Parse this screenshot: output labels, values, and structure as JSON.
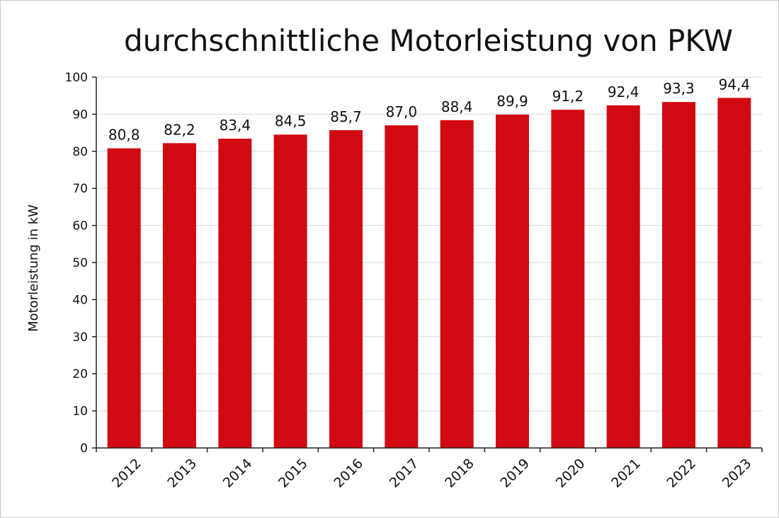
{
  "chart_data": {
    "type": "bar",
    "title": "durchschnittliche Motorleistung von PKW",
    "xlabel": "",
    "ylabel": "Motorleistung in kW",
    "categories": [
      "2012",
      "2013",
      "2014",
      "2015",
      "2016",
      "2017",
      "2018",
      "2019",
      "2020",
      "2021",
      "2022",
      "2023"
    ],
    "values": [
      80.8,
      82.2,
      83.4,
      84.5,
      85.7,
      87.0,
      88.4,
      89.9,
      91.2,
      92.4,
      93.3,
      94.4
    ],
    "value_labels": [
      "80,8",
      "82,2",
      "83,4",
      "84,5",
      "85,7",
      "87,0",
      "88,4",
      "89,9",
      "91,2",
      "92,4",
      "93,3",
      "94,4"
    ],
    "ylim": [
      0,
      100
    ],
    "yticks": [
      0,
      10,
      20,
      30,
      40,
      50,
      60,
      70,
      80,
      90,
      100
    ],
    "grid": true,
    "legend": "none",
    "bar_color": "#d10a12",
    "grid_color": "#d9d9d9"
  }
}
